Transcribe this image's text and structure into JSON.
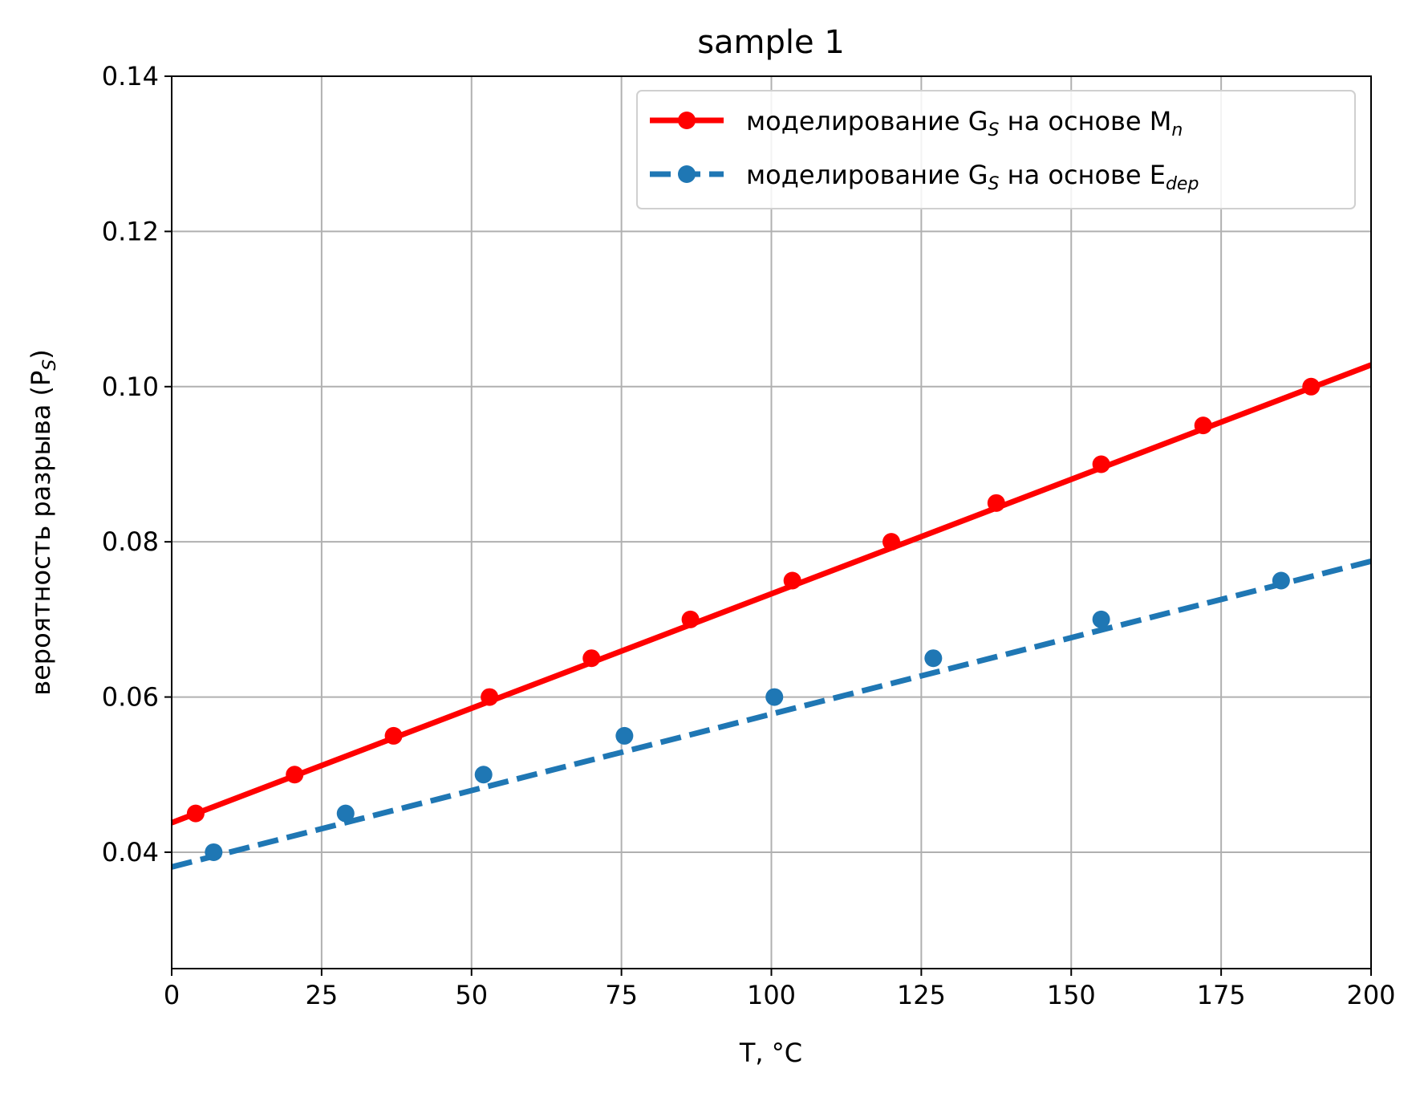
{
  "chart_data": {
    "type": "line",
    "title": "sample 1",
    "xlabel": "T, °C",
    "ylabel": {
      "main": "вероятность разрыва (P",
      "sub": "S",
      "end": ")"
    },
    "xlim": [
      0,
      200
    ],
    "ylim": [
      0.025,
      0.14
    ],
    "xticks": [
      0,
      25,
      50,
      75,
      100,
      125,
      150,
      175,
      200
    ],
    "xtick_labels": [
      "0",
      "25",
      "50",
      "75",
      "100",
      "125",
      "150",
      "175",
      "200"
    ],
    "yticks": [
      0.04,
      0.06,
      0.08,
      0.1,
      0.12,
      0.14
    ],
    "ytick_labels": [
      "0.04",
      "0.06",
      "0.08",
      "0.10",
      "0.12",
      "0.14"
    ],
    "grid": true,
    "legend_position": "top-right",
    "series": [
      {
        "legend": {
          "pre": "моделирование G",
          "sub1": "S",
          "mid": " на основе M",
          "sub2": "n"
        },
        "color": "#ff0000",
        "line_style": "solid",
        "marker": "circle",
        "line": [
          [
            0,
            0.0438
          ],
          [
            200,
            0.1028
          ]
        ],
        "points": [
          [
            4,
            0.045
          ],
          [
            20.5,
            0.05
          ],
          [
            37,
            0.055
          ],
          [
            53,
            0.06
          ],
          [
            70,
            0.065
          ],
          [
            86.5,
            0.07
          ],
          [
            103.5,
            0.075
          ],
          [
            120,
            0.08
          ],
          [
            137.5,
            0.085
          ],
          [
            155,
            0.09
          ],
          [
            172,
            0.095
          ],
          [
            190,
            0.1
          ]
        ]
      },
      {
        "legend": {
          "pre": "моделирование G",
          "sub1": "S",
          "mid": " на основе E",
          "sub2": "dep"
        },
        "color": "#1f77b4",
        "line_style": "dashed",
        "marker": "circle",
        "line": [
          [
            0,
            0.0381
          ],
          [
            200,
            0.0775
          ]
        ],
        "points": [
          [
            7,
            0.04
          ],
          [
            29,
            0.045
          ],
          [
            52,
            0.05
          ],
          [
            75.5,
            0.055
          ],
          [
            100.5,
            0.06
          ],
          [
            127,
            0.065
          ],
          [
            155,
            0.07
          ],
          [
            185,
            0.075
          ]
        ]
      }
    ]
  }
}
